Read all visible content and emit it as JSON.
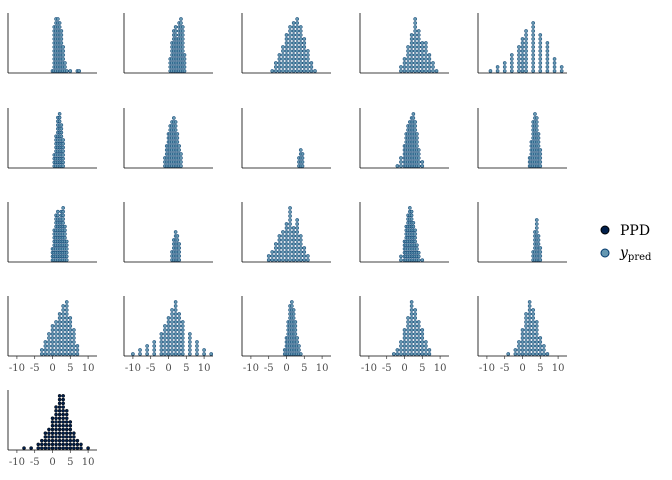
{
  "chart_data": {
    "type": "dotplot-grid",
    "x_ticks": [
      -10,
      -5,
      0,
      5,
      10
    ],
    "xlim": [
      -12.5,
      12.5
    ],
    "colors": {
      "PPD": "#011f4b",
      "ypred": "#6497b1",
      "ypred_outline": "#03396c"
    },
    "legend": {
      "position": "right",
      "items": [
        {
          "key": "PPD",
          "label": "PPD",
          "color": "#011f4b"
        },
        {
          "key": "ypred",
          "label_main": "y",
          "label_sub": "pred",
          "color": "#6497b1"
        }
      ]
    },
    "panels": [
      {
        "series": "ypred",
        "bins": [
          [
            0,
            1
          ],
          [
            0.5,
            12
          ],
          [
            1,
            14
          ],
          [
            1.5,
            14
          ],
          [
            2,
            13
          ],
          [
            2.5,
            11
          ],
          [
            3,
            7
          ],
          [
            3.5,
            3
          ],
          [
            4,
            1
          ],
          [
            5,
            1
          ],
          [
            7,
            1
          ],
          [
            7.5,
            1
          ]
        ]
      },
      {
        "series": "ypred",
        "bins": [
          [
            0.5,
            4
          ],
          [
            1,
            8
          ],
          [
            1.5,
            11
          ],
          [
            2,
            12
          ],
          [
            2.5,
            9
          ],
          [
            3,
            13
          ],
          [
            3.5,
            14
          ],
          [
            4,
            12
          ],
          [
            4.5,
            5
          ]
        ]
      },
      {
        "series": "ypred",
        "bins": [
          [
            -4,
            1
          ],
          [
            -3,
            3
          ],
          [
            -2,
            5
          ],
          [
            -1,
            7
          ],
          [
            0,
            10
          ],
          [
            1,
            12
          ],
          [
            2,
            13
          ],
          [
            3,
            14
          ],
          [
            4,
            12
          ],
          [
            5,
            9
          ],
          [
            6,
            6
          ],
          [
            7,
            3
          ],
          [
            8,
            1
          ]
        ]
      },
      {
        "series": "ypred",
        "bins": [
          [
            -1,
            2
          ],
          [
            0,
            4
          ],
          [
            1,
            7
          ],
          [
            2,
            10
          ],
          [
            3,
            14
          ],
          [
            4,
            11
          ],
          [
            5,
            8
          ],
          [
            6,
            8
          ],
          [
            7,
            5
          ],
          [
            8,
            3
          ],
          [
            9,
            1
          ]
        ]
      },
      {
        "series": "ypred",
        "bins": [
          [
            -9,
            1
          ],
          [
            -7,
            2
          ],
          [
            -5,
            3
          ],
          [
            -3,
            5
          ],
          [
            -1,
            7
          ],
          [
            0,
            9
          ],
          [
            1,
            11
          ],
          [
            3,
            13
          ],
          [
            5,
            10
          ],
          [
            7,
            8
          ],
          [
            9,
            4
          ],
          [
            11,
            2
          ]
        ]
      },
      {
        "series": "ypred",
        "bins": [
          [
            0.5,
            4
          ],
          [
            1,
            9
          ],
          [
            1.5,
            14
          ],
          [
            2,
            15
          ],
          [
            2.5,
            12
          ],
          [
            3,
            8
          ]
        ]
      },
      {
        "series": "ypred",
        "bins": [
          [
            -1,
            3
          ],
          [
            -0.5,
            6
          ],
          [
            0,
            9
          ],
          [
            0.5,
            11
          ],
          [
            1,
            12
          ],
          [
            1.5,
            13
          ],
          [
            2,
            12
          ],
          [
            2.5,
            9
          ],
          [
            3,
            6
          ],
          [
            3.5,
            4
          ]
        ]
      },
      {
        "series": "ypred",
        "bins": [
          [
            3.5,
            3
          ],
          [
            4,
            5
          ],
          [
            4.5,
            4
          ]
        ]
      },
      {
        "series": "ypred",
        "bins": [
          [
            -2,
            1
          ],
          [
            -1,
            3
          ],
          [
            0,
            6
          ],
          [
            0.5,
            9
          ],
          [
            1,
            11
          ],
          [
            1.5,
            12
          ],
          [
            2,
            13
          ],
          [
            2.5,
            14
          ],
          [
            3,
            12
          ],
          [
            3.5,
            9
          ],
          [
            4,
            5
          ],
          [
            5,
            2
          ]
        ]
      },
      {
        "series": "ypred",
        "bins": [
          [
            2,
            3
          ],
          [
            2.5,
            7
          ],
          [
            3,
            12
          ],
          [
            3.5,
            14
          ],
          [
            4,
            13
          ],
          [
            4.5,
            9
          ],
          [
            5,
            5
          ]
        ]
      },
      {
        "series": "ypred",
        "bins": [
          [
            0,
            4
          ],
          [
            0.5,
            9
          ],
          [
            1,
            13
          ],
          [
            1.5,
            14
          ],
          [
            2,
            12
          ],
          [
            2.5,
            14
          ],
          [
            3,
            15
          ],
          [
            3.5,
            10
          ],
          [
            4,
            6
          ]
        ]
      },
      {
        "series": "ypred",
        "bins": [
          [
            1,
            3
          ],
          [
            1.5,
            6
          ],
          [
            2,
            8
          ],
          [
            2.5,
            7
          ],
          [
            3,
            5
          ]
        ]
      },
      {
        "series": "ypred",
        "bins": [
          [
            -5,
            2
          ],
          [
            -4,
            3
          ],
          [
            -3,
            5
          ],
          [
            -2,
            7
          ],
          [
            -1,
            8
          ],
          [
            0,
            10
          ],
          [
            1,
            14
          ],
          [
            2,
            9
          ],
          [
            3,
            11
          ],
          [
            4,
            7
          ],
          [
            5,
            4
          ],
          [
            6,
            2
          ]
        ]
      },
      {
        "series": "ypred",
        "bins": [
          [
            -1,
            2
          ],
          [
            0,
            6
          ],
          [
            0.5,
            10
          ],
          [
            1,
            13
          ],
          [
            1.5,
            15
          ],
          [
            2,
            14
          ],
          [
            2.5,
            11
          ],
          [
            3,
            9
          ],
          [
            3.5,
            5
          ],
          [
            4,
            3
          ],
          [
            5,
            1
          ]
        ]
      },
      {
        "series": "ypred",
        "bins": [
          [
            3,
            3
          ],
          [
            3.5,
            8
          ],
          [
            4,
            11
          ],
          [
            4.5,
            7
          ],
          [
            5,
            4
          ]
        ]
      },
      {
        "series": "ypred",
        "bins": [
          [
            -3,
            2
          ],
          [
            -2,
            4
          ],
          [
            -1,
            6
          ],
          [
            0,
            8
          ],
          [
            1,
            9
          ],
          [
            2,
            11
          ],
          [
            3,
            13
          ],
          [
            4,
            14
          ],
          [
            5,
            10
          ],
          [
            6,
            7
          ],
          [
            7,
            3
          ]
        ]
      },
      {
        "series": "ypred",
        "bins": [
          [
            -10,
            1
          ],
          [
            -8,
            2
          ],
          [
            -6,
            3
          ],
          [
            -4,
            4
          ],
          [
            -2,
            6
          ],
          [
            -1,
            8
          ],
          [
            0,
            10
          ],
          [
            1,
            12
          ],
          [
            2,
            14
          ],
          [
            3,
            11
          ],
          [
            4,
            9
          ],
          [
            6,
            6
          ],
          [
            8,
            4
          ],
          [
            10,
            2
          ],
          [
            12,
            1
          ]
        ]
      },
      {
        "series": "ypred",
        "bins": [
          [
            -0.5,
            2
          ],
          [
            0,
            5
          ],
          [
            0.5,
            9
          ],
          [
            1,
            13
          ],
          [
            1.5,
            14
          ],
          [
            2,
            12
          ],
          [
            2.5,
            9
          ],
          [
            3,
            5
          ],
          [
            3.5,
            3
          ],
          [
            4,
            1
          ]
        ]
      },
      {
        "series": "ypred",
        "bins": [
          [
            -3,
            1
          ],
          [
            -2,
            2
          ],
          [
            -1,
            4
          ],
          [
            0,
            7
          ],
          [
            1,
            10
          ],
          [
            2,
            14
          ],
          [
            3,
            12
          ],
          [
            4,
            9
          ],
          [
            5,
            7
          ],
          [
            6,
            4
          ],
          [
            7,
            2
          ]
        ]
      },
      {
        "series": "ypred",
        "bins": [
          [
            -4,
            1
          ],
          [
            -2,
            2
          ],
          [
            -1,
            4
          ],
          [
            0,
            7
          ],
          [
            1,
            11
          ],
          [
            2,
            14
          ],
          [
            3,
            12
          ],
          [
            4,
            9
          ],
          [
            5,
            5
          ],
          [
            6,
            3
          ],
          [
            7,
            1
          ]
        ]
      },
      {
        "series": "PPD",
        "bins": [
          [
            -8,
            1
          ],
          [
            -6,
            1
          ],
          [
            -4,
            2
          ],
          [
            -3,
            3
          ],
          [
            -2,
            5
          ],
          [
            -1,
            6
          ],
          [
            0,
            9
          ],
          [
            1,
            12
          ],
          [
            2,
            15
          ],
          [
            3,
            15
          ],
          [
            4,
            11
          ],
          [
            5,
            8
          ],
          [
            6,
            5
          ],
          [
            7,
            3
          ],
          [
            8,
            2
          ],
          [
            10,
            1
          ]
        ]
      }
    ]
  }
}
